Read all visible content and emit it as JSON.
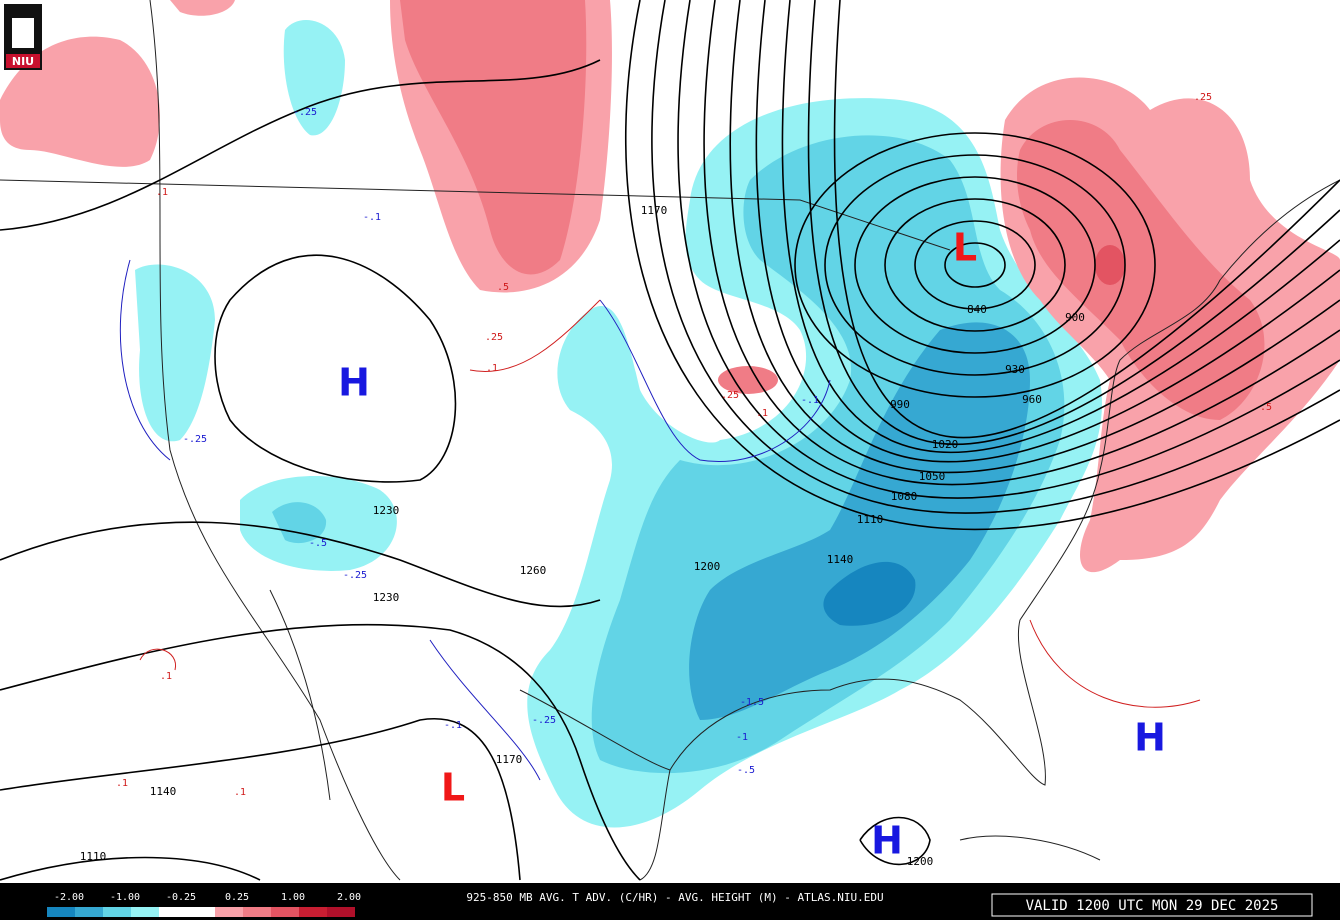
{
  "header": {
    "logo": "NIU"
  },
  "footer": {
    "title": "925-850 MB AVG. T ADV. (C/HR) - AVG. HEIGHT (M) - ATLAS.NIU.EDU",
    "valid": "VALID 1200 UTC MON 29 DEC 2025"
  },
  "legend": {
    "labels": [
      "-2.00",
      "-1.00",
      "-0.25",
      "0.25",
      "1.00",
      "2.00"
    ]
  },
  "pressure_centers": [
    "L",
    "H",
    "L",
    "H",
    "H"
  ],
  "height_labels": [
    "1170",
    "840",
    "900",
    "930",
    "960",
    "990",
    "1020",
    "1050",
    "1080",
    "1110",
    "1140",
    "1200",
    "1230",
    "1260",
    "1230",
    "1170",
    "1140",
    "1110",
    "1200"
  ],
  "advection_labels": [
    "-.25",
    "-.1",
    ".1",
    ".25",
    ".1",
    ".5",
    "-.25",
    "-.5",
    "-.25",
    ".1",
    "-.1",
    "-.25",
    "-1.5",
    "-1",
    "-.5",
    ".1",
    ".1",
    ".25",
    ".1",
    "-.1",
    ".25",
    ".5"
  ]
}
